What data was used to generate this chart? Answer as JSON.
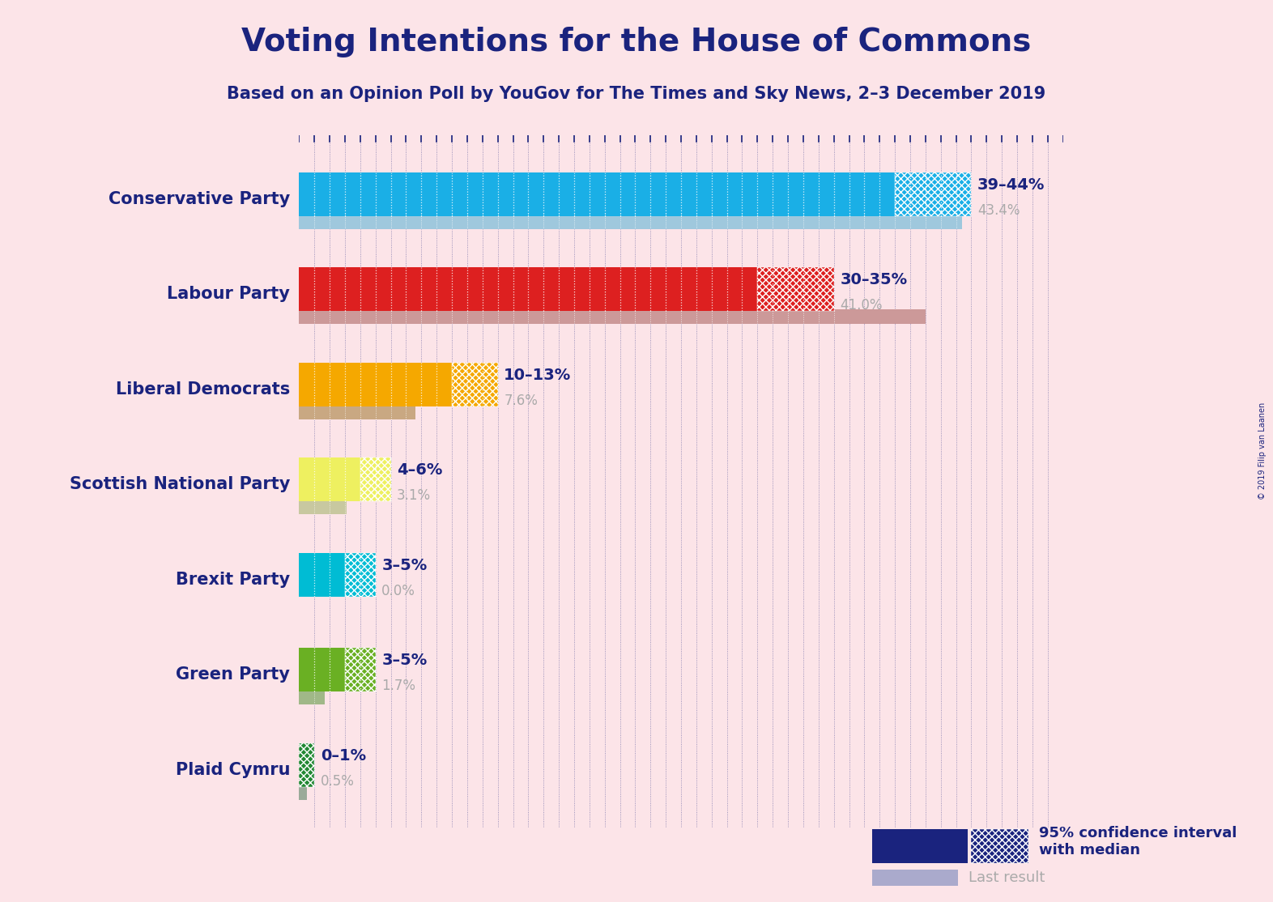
{
  "title": "Voting Intentions for the House of Commons",
  "subtitle": "Based on an Opinion Poll by YouGov for The Times and Sky News, 2–3 December 2019",
  "copyright": "© 2019 Filip van Laanen",
  "background_color": "#fce4e8",
  "parties": [
    {
      "name": "Conservative Party",
      "ci_low": 39,
      "ci_high": 44,
      "last_result": 43.4,
      "color": "#1aafe6",
      "last_color": "#9fc8dd",
      "label": "39–44%",
      "last_label": "43.4%"
    },
    {
      "name": "Labour Party",
      "ci_low": 30,
      "ci_high": 35,
      "last_result": 41.0,
      "color": "#dd2020",
      "last_color": "#cc9999",
      "label": "30–35%",
      "last_label": "41.0%"
    },
    {
      "name": "Liberal Democrats",
      "ci_low": 10,
      "ci_high": 13,
      "last_result": 7.6,
      "color": "#f5a800",
      "last_color": "#c9a882",
      "label": "10–13%",
      "last_label": "7.6%"
    },
    {
      "name": "Scottish National Party",
      "ci_low": 4,
      "ci_high": 6,
      "last_result": 3.1,
      "color": "#eef060",
      "last_color": "#c8c8a0",
      "label": "4–6%",
      "last_label": "3.1%"
    },
    {
      "name": "Brexit Party",
      "ci_low": 3,
      "ci_high": 5,
      "last_result": 0.0,
      "color": "#00bcd4",
      "last_color": "#aadddd",
      "label": "3–5%",
      "last_label": "0.0%"
    },
    {
      "name": "Green Party",
      "ci_low": 3,
      "ci_high": 5,
      "last_result": 1.7,
      "color": "#6ab023",
      "last_color": "#a0b888",
      "label": "3–5%",
      "last_label": "1.7%"
    },
    {
      "name": "Plaid Cymru",
      "ci_low": 0,
      "ci_high": 1,
      "last_result": 0.5,
      "color": "#228833",
      "last_color": "#9aaa99",
      "label": "0–1%",
      "last_label": "0.5%"
    }
  ],
  "title_color": "#1a237e",
  "subtitle_color": "#1a237e",
  "party_label_color": "#1a237e",
  "ci_label_color": "#1a237e",
  "last_label_color": "#aaaaaa",
  "legend_color": "#1a237e",
  "last_result_label_color": "#aaaaaa",
  "tick_color": "#1a237e",
  "vline_color": "#1a237e",
  "xlim_max": 50
}
